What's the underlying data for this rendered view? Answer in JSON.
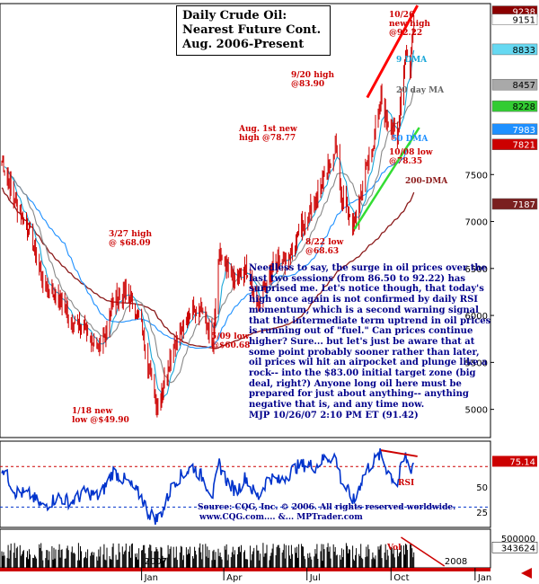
{
  "title": {
    "line1": "Daily Crude Oil:",
    "line2": "Nearest Future Cont.",
    "line3": "Aug. 2006-Present"
  },
  "commentary": {
    "text": "Needless to say, the surge in oil prices over the last two sessions (from 86.50 to 92.22) has surprised me. Let's notice though, that today's high once again is not confirmed by daily RSI momentum, which is a second warning signal that the intermediate term uptrend in oil prices is running out of \"fuel.\" Can prices continue higher? Sure... but let's just be aware that at some point probably sooner rather than later, oil prices wil hit an airpocket and plunge like a rock-- into the $83.00 initial target zone (big deal, right?) Anyone long oil here must be prepared for just about anything-- anything negative that is, and any time now.",
    "signature": "MJP  10/26/07 2:10 PM ET  (91.42)"
  },
  "source": {
    "line1": "Source: CQG, Inc. © 2006. All rights reserved worldwide.",
    "line2": "www.CQG.com....  &...  MPTrader.com"
  },
  "annotations": {
    "a1018": {
      "line1": "10/26",
      "line2": "new high",
      "line3": "@92.22"
    },
    "a920": {
      "line1": "9/20 high",
      "line2": "@83.90"
    },
    "aug": {
      "line1": "Aug. 1st new",
      "line2": "high @78.77"
    },
    "a327": {
      "line1": "3/27 high",
      "line2": "@ $68.09"
    },
    "a509": {
      "line1": "5/09 low",
      "line2": "@$60.68"
    },
    "a118": {
      "line1": "1/18 new",
      "line2": "low @$49.90"
    },
    "a822": {
      "line1": "8/22 low",
      "line2": "@68.63"
    },
    "a1008": {
      "line1": "10/08 low",
      "line2": "@78.35"
    },
    "dma9": "9 DMA",
    "dma20": "20 day MA",
    "dma50": "50 DMA",
    "dma200": "200-DMA",
    "rsi": "RSI",
    "vol": "Vol"
  },
  "chart_data": {
    "type": "candlestick",
    "title": "Daily Crude Oil: Nearest Future Cont. Aug. 2006-Present",
    "price_axis": {
      "ticks": [
        5000,
        5500,
        6000,
        6500,
        7000,
        7500
      ],
      "range": [
        4700,
        9320
      ]
    },
    "rsi_axis": {
      "ticks": [
        50,
        25
      ],
      "range": [
        10,
        95
      ]
    },
    "volume_axis": {
      "ticks": [
        500000
      ],
      "range": [
        0,
        650000
      ]
    },
    "time_axis": {
      "month_labels": [
        "Jan",
        "Apr",
        "Jul",
        "Oct",
        "Jan"
      ],
      "year_labels": [
        "2007",
        "2008"
      ]
    },
    "price_tags": [
      {
        "label": "9238",
        "value": 9238,
        "bg": "#8b0000",
        "fg": "#ffffff"
      },
      {
        "label": "9151",
        "value": 9151,
        "bg": "#ffffff",
        "fg": "#000000"
      },
      {
        "label": "8833",
        "value": 8833,
        "bg": "#66d9f2",
        "fg": "#000000"
      },
      {
        "label": "8457",
        "value": 8457,
        "bg": "#a9a9a9",
        "fg": "#000000"
      },
      {
        "label": "8228",
        "value": 8228,
        "bg": "#33cc33",
        "fg": "#000000"
      },
      {
        "label": "7983",
        "value": 7983,
        "bg": "#1e90ff",
        "fg": "#ffffff"
      },
      {
        "label": "7821",
        "value": 7821,
        "bg": "#cc0000",
        "fg": "#ffffff"
      },
      {
        "label": "7187",
        "value": 7187,
        "bg": "#7a1f1f",
        "fg": "#ffffff"
      }
    ],
    "rsi_tag": {
      "label": "75.14",
      "value": 75.14,
      "bg": "#cc0000",
      "fg": "#ffffff"
    },
    "volume_tag": {
      "label": "343624",
      "value": 343624
    },
    "key_points": [
      {
        "date": "1/18/07",
        "value": 49.9,
        "kind": "low"
      },
      {
        "date": "3/27/07",
        "value": 68.09,
        "kind": "high"
      },
      {
        "date": "5/09/07",
        "value": 60.68,
        "kind": "low"
      },
      {
        "date": "8/01/07",
        "value": 78.77,
        "kind": "high"
      },
      {
        "date": "8/22/07",
        "value": 68.63,
        "kind": "low"
      },
      {
        "date": "9/20/07",
        "value": 83.9,
        "kind": "high"
      },
      {
        "date": "10/08/07",
        "value": 78.35,
        "kind": "low"
      },
      {
        "date": "10/26/07",
        "value": 92.22,
        "kind": "high"
      }
    ],
    "price_path": [
      [
        "8/01/06",
        7650
      ],
      [
        "8/16/06",
        7200
      ],
      [
        "9/01/06",
        6900
      ],
      [
        "9/15/06",
        6350
      ],
      [
        "10/01/06",
        6200
      ],
      [
        "10/16/06",
        5950
      ],
      [
        "11/01/06",
        5850
      ],
      [
        "11/16/06",
        5600
      ],
      [
        "12/01/06",
        6150
      ],
      [
        "12/16/06",
        6250
      ],
      [
        "1/01/07",
        5900
      ],
      [
        "1/08/07",
        5500
      ],
      [
        "1/18/07",
        5050
      ],
      [
        "1/25/07",
        5250
      ],
      [
        "2/05/07",
        5700
      ],
      [
        "2/15/07",
        5850
      ],
      [
        "2/26/07",
        6100
      ],
      [
        "3/08/07",
        6050
      ],
      [
        "3/20/07",
        5700
      ],
      [
        "3/27/07",
        6650
      ],
      [
        "4/05/07",
        6450
      ],
      [
        "4/15/07",
        6350
      ],
      [
        "4/25/07",
        6500
      ],
      [
        "5/01/07",
        6300
      ],
      [
        "5/09/07",
        6120
      ],
      [
        "5/20/07",
        6450
      ],
      [
        "6/01/07",
        6600
      ],
      [
        "6/10/07",
        6600
      ],
      [
        "6/20/07",
        6850
      ],
      [
        "7/01/07",
        7050
      ],
      [
        "7/10/07",
        7250
      ],
      [
        "7/20/07",
        7450
      ],
      [
        "8/01/07",
        7800
      ],
      [
        "8/08/07",
        7250
      ],
      [
        "8/15/07",
        7100
      ],
      [
        "8/22/07",
        6950
      ],
      [
        "8/29/07",
        7300
      ],
      [
        "9/05/07",
        7600
      ],
      [
        "9/12/07",
        7850
      ],
      [
        "9/20/07",
        8300
      ],
      [
        "9/26/07",
        8100
      ],
      [
        "10/02/07",
        8000
      ],
      [
        "10/08/07",
        7850
      ],
      [
        "10/12/07",
        8350
      ],
      [
        "10/17/07",
        8800
      ],
      [
        "10/22/07",
        8650
      ],
      [
        "10/26/07",
        9151
      ]
    ],
    "rsi_path": [
      [
        "8/01/06",
        70
      ],
      [
        "8/16/06",
        45
      ],
      [
        "9/01/06",
        42
      ],
      [
        "9/15/06",
        30
      ],
      [
        "10/01/06",
        40
      ],
      [
        "10/16/06",
        35
      ],
      [
        "11/01/06",
        45
      ],
      [
        "11/16/06",
        40
      ],
      [
        "12/01/06",
        65
      ],
      [
        "12/16/06",
        55
      ],
      [
        "1/01/07",
        40
      ],
      [
        "1/08/07",
        25
      ],
      [
        "1/18/07",
        18
      ],
      [
        "1/25/07",
        28
      ],
      [
        "2/05/07",
        55
      ],
      [
        "2/15/07",
        62
      ],
      [
        "2/26/07",
        70
      ],
      [
        "3/08/07",
        60
      ],
      [
        "3/20/07",
        42
      ],
      [
        "3/27/07",
        72
      ],
      [
        "4/05/07",
        55
      ],
      [
        "4/15/07",
        45
      ],
      [
        "4/25/07",
        60
      ],
      [
        "5/01/07",
        48
      ],
      [
        "5/09/07",
        40
      ],
      [
        "5/20/07",
        60
      ],
      [
        "6/01/07",
        55
      ],
      [
        "6/10/07",
        62
      ],
      [
        "6/20/07",
        70
      ],
      [
        "7/01/07",
        72
      ],
      [
        "7/10/07",
        70
      ],
      [
        "7/20/07",
        78
      ],
      [
        "8/01/07",
        80
      ],
      [
        "8/08/07",
        55
      ],
      [
        "8/15/07",
        45
      ],
      [
        "8/22/07",
        35
      ],
      [
        "8/29/07",
        55
      ],
      [
        "9/05/07",
        68
      ],
      [
        "9/12/07",
        75
      ],
      [
        "9/20/07",
        82
      ],
      [
        "9/26/07",
        68
      ],
      [
        "10/02/07",
        60
      ],
      [
        "10/08/07",
        52
      ],
      [
        "10/12/07",
        68
      ],
      [
        "10/17/07",
        80
      ],
      [
        "10/22/07",
        66
      ],
      [
        "10/26/07",
        75
      ]
    ],
    "colors": {
      "price_line": "#cc0000",
      "dma9": "#1aa7d8",
      "dma20": "#888888",
      "dma50": "#1e90ff",
      "dma200": "#8b1a1a",
      "rsi": "#0033cc",
      "trend_upper": "#ff0000",
      "trend_lower": "#33dd33",
      "annotation_red": "#cc0000",
      "annotation_blue": "#00008b"
    }
  }
}
